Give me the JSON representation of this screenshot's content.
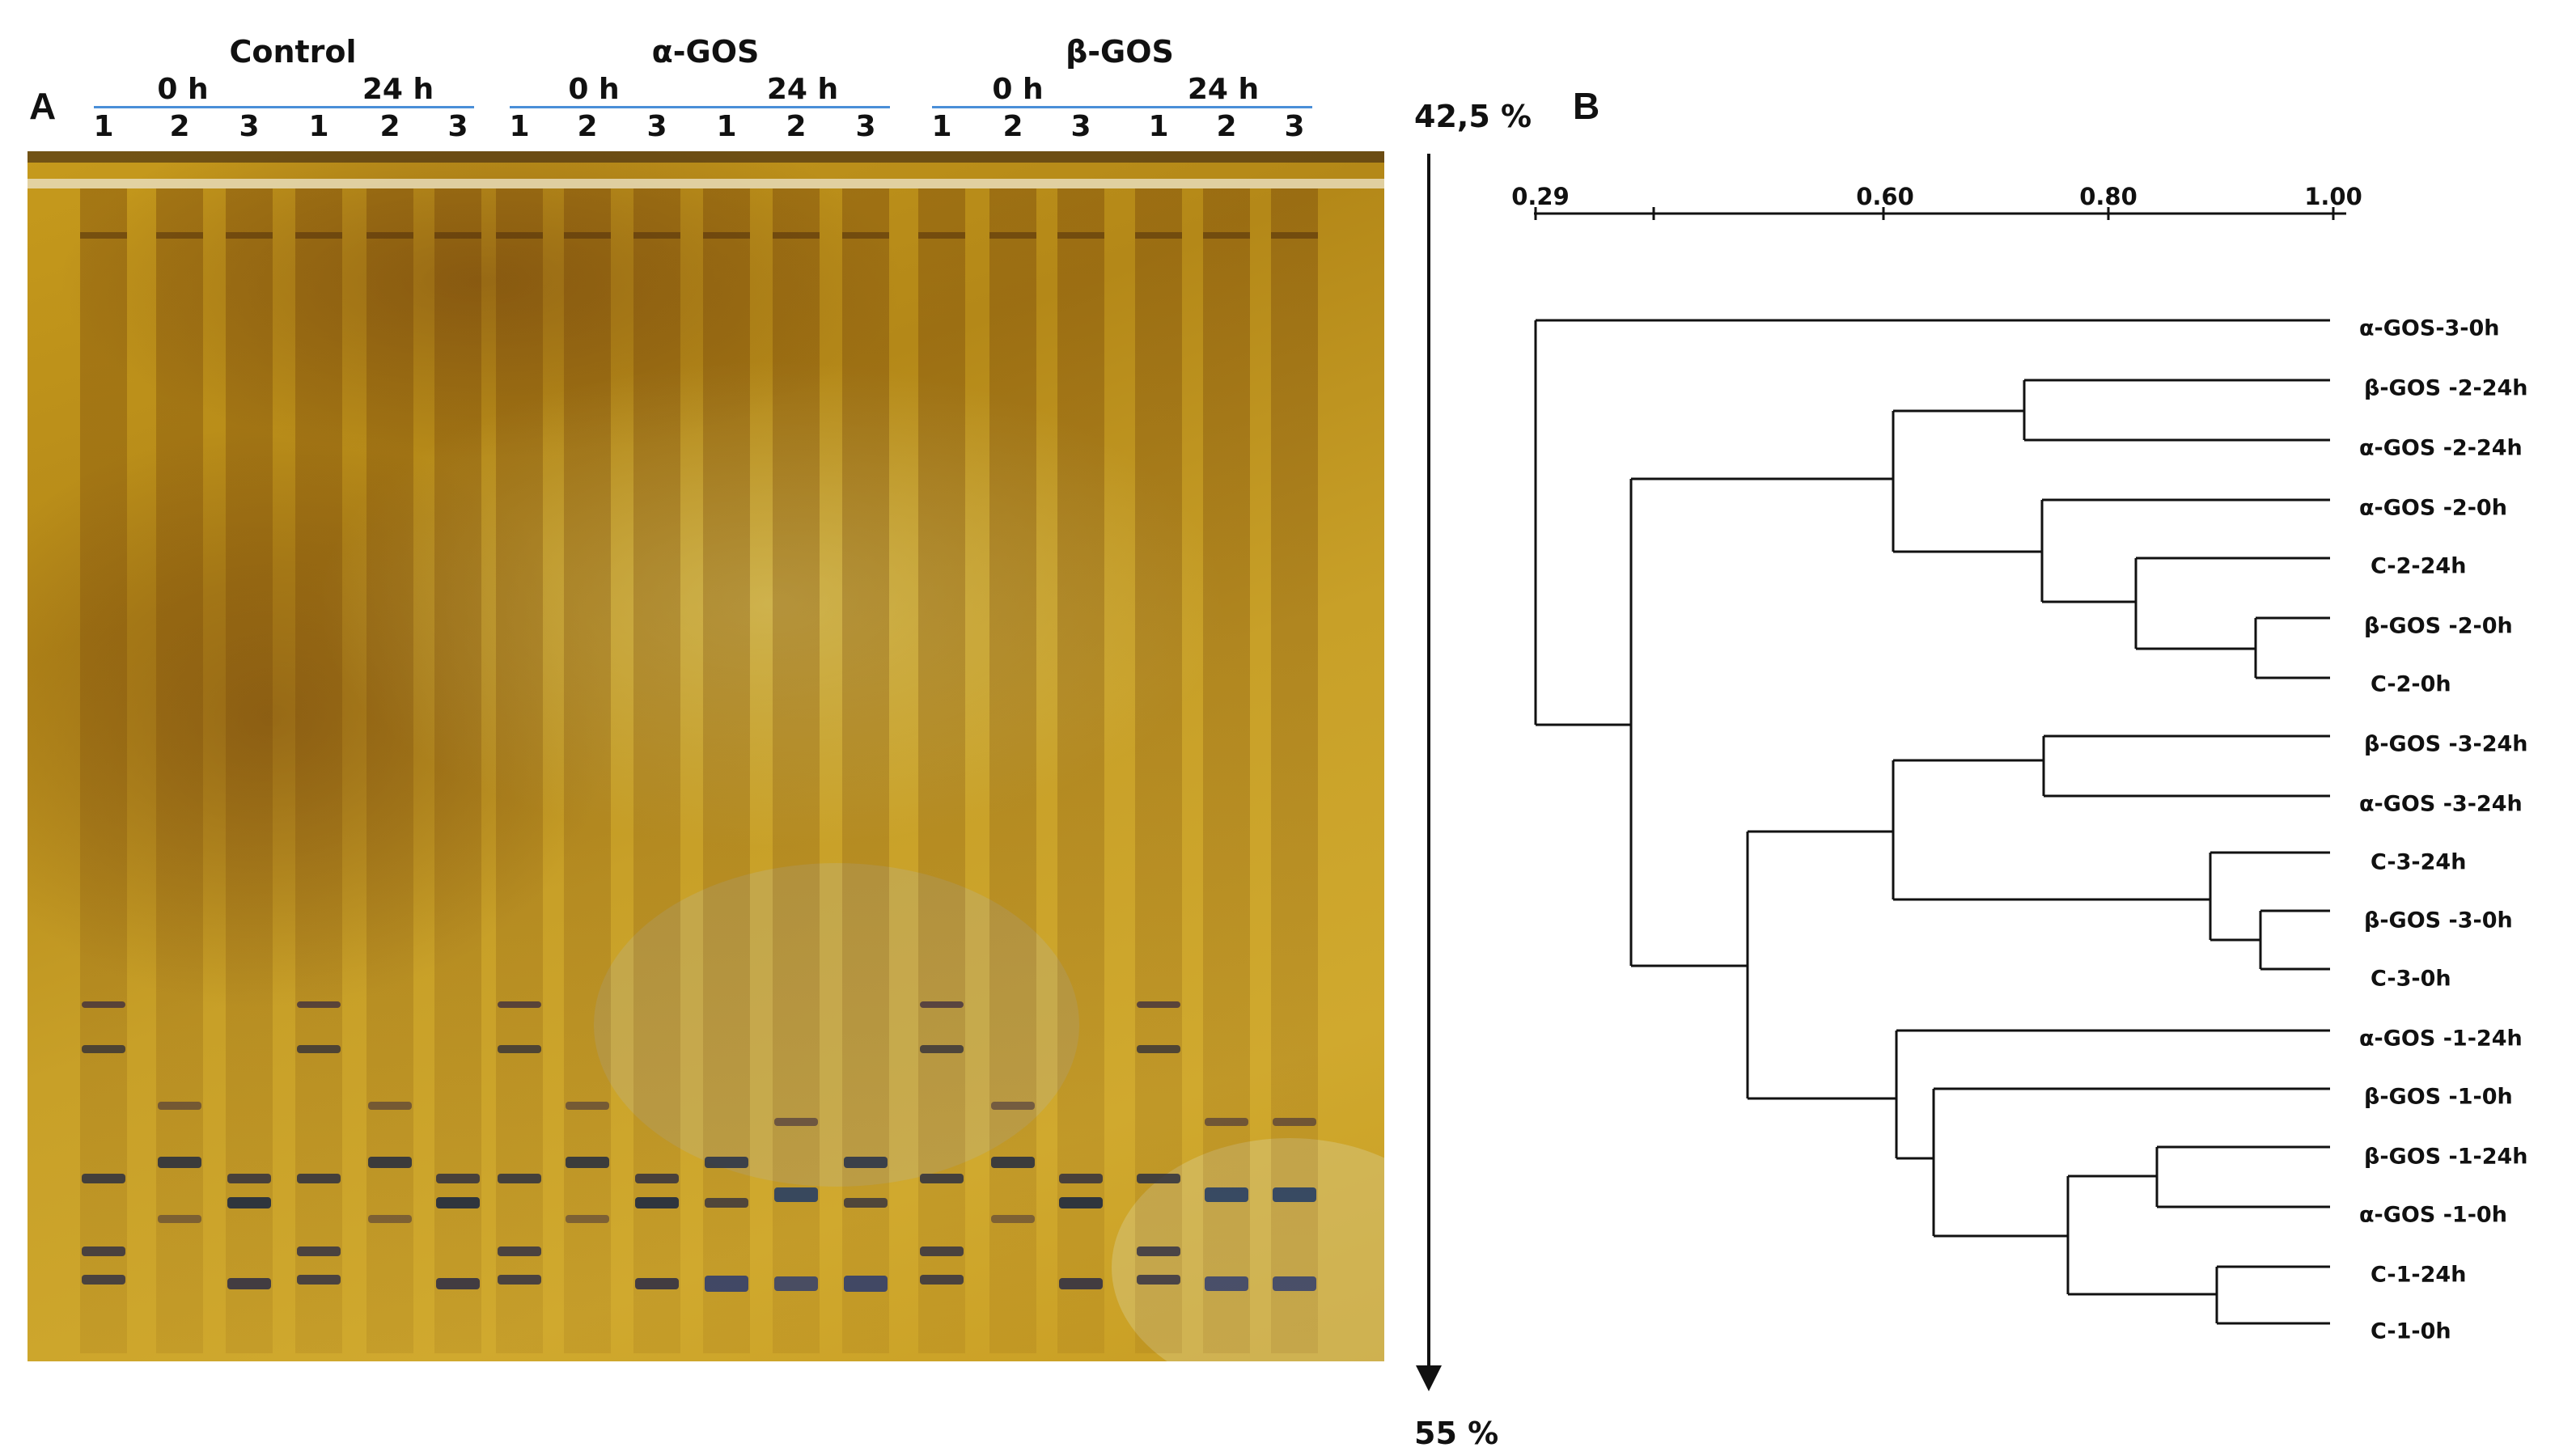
{
  "panelA": {
    "letter": "A",
    "groups": [
      {
        "name": "Control",
        "t0": "0 h",
        "t24": "24 h"
      },
      {
        "name": "α-GOS",
        "t0": "0 h",
        "t24": "24 h"
      },
      {
        "name": "β-GOS",
        "t0": "0 h",
        "t24": "24 h"
      }
    ],
    "lane_numbers": [
      "1",
      "2",
      "3",
      "1",
      "2",
      "3"
    ],
    "gradient_top": "42,5 %",
    "gradient_bottom": "55 %"
  },
  "panelB": {
    "letter": "B",
    "scale_ticks": [
      "0.29",
      "0.60",
      "0.80",
      "1.00"
    ],
    "leaves": [
      "α-GOS-3-0h",
      "β-GOS -2-24h",
      "α-GOS -2-24h",
      "α-GOS -2-0h",
      "C-2-24h",
      "β-GOS -2-0h",
      "C-2-0h",
      "β-GOS -3-24h",
      "α-GOS -3-24h",
      "C-3-24h",
      "β-GOS -3-0h",
      "C-3-0h",
      "α-GOS -1-24h",
      "β-GOS -1-0h",
      "β-GOS -1-24h",
      "α-GOS -1-0h",
      "C-1-24h",
      "C-1-0h"
    ]
  }
}
